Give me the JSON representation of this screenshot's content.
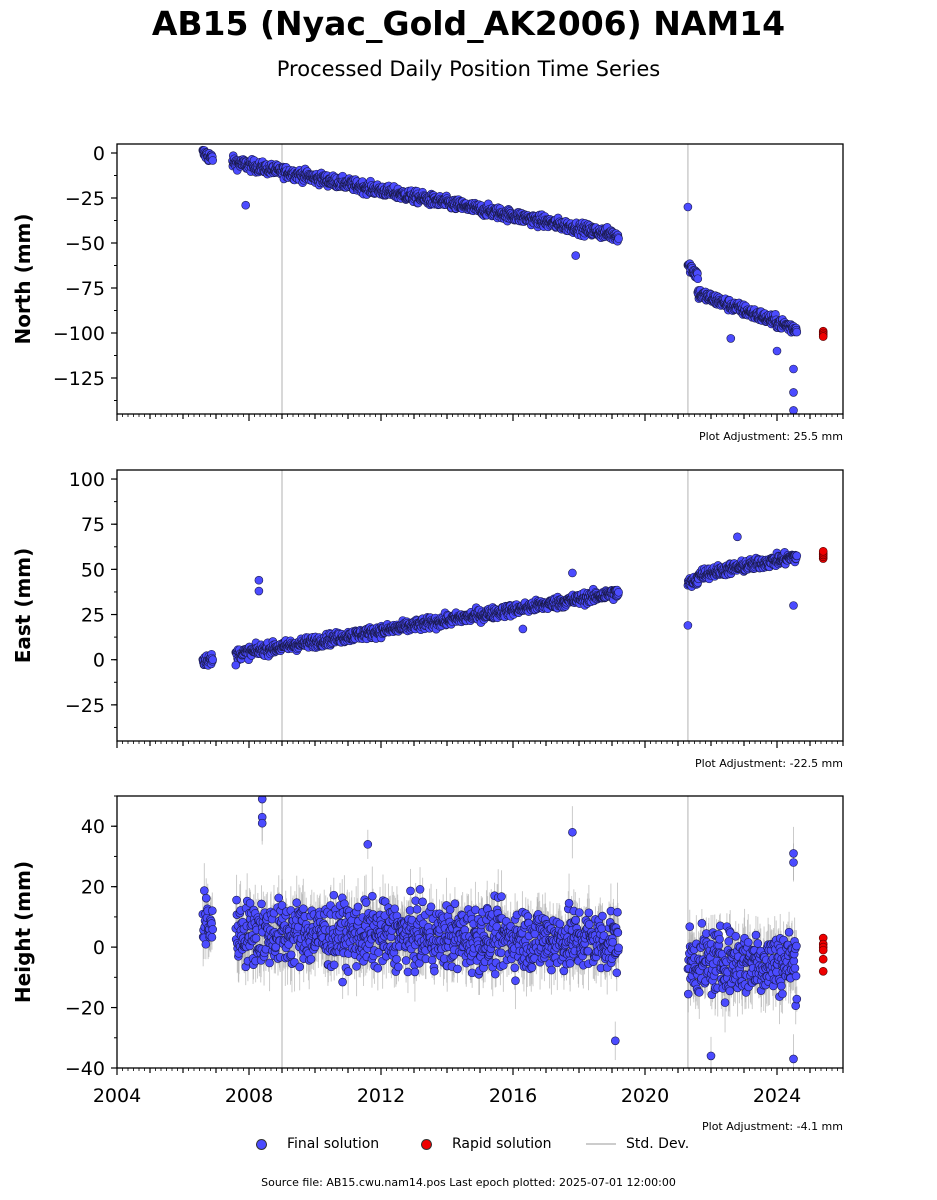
{
  "title": "AB15 (Nyac_Gold_AK2006) NAM14",
  "subtitle": "Processed Daily Position Time Series",
  "legend": {
    "final": "Final solution",
    "rapid": "Rapid solution",
    "std": "Std. Dev."
  },
  "source_text": "Source file: AB15.cwu.nam14.pos  Last epoch plotted: 2025-07-01 12:00:00",
  "colors": {
    "final": "#4b4bff",
    "rapid": "#ee0000",
    "std": "#cccccc",
    "ref_line": "#cccccc"
  },
  "chart_data": [
    {
      "type": "scatter",
      "ylabel": "North (mm)",
      "xlim": [
        2004.0,
        2026.0
      ],
      "ylim": [
        -145,
        5
      ],
      "yticks": [
        0,
        -25,
        -50,
        -75,
        -100,
        -125
      ],
      "ytick_labels": [
        "0",
        "−25",
        "−50",
        "−75",
        "−100",
        "−125"
      ],
      "x_tick_labels_visible": false,
      "vlines": [
        2009.0,
        2021.3
      ],
      "adjustment": "Plot Adjustment: 25.5 mm",
      "series": [
        {
          "kind": "final",
          "segments": [
            [
              2006.6,
              0,
              2006.9,
              -3
            ],
            [
              2007.5,
              -5,
              2019.2,
              -46
            ],
            [
              2021.3,
              -62,
              2021.6,
              -68
            ],
            [
              2021.6,
              -78,
              2024.6,
              -98
            ]
          ],
          "outliers": [
            [
              2007.9,
              -29
            ],
            [
              2021.3,
              -30
            ],
            [
              2024.5,
              -120
            ],
            [
              2024.5,
              -133
            ],
            [
              2024.5,
              -143
            ],
            [
              2017.9,
              -57
            ],
            [
              2024.0,
              -110
            ],
            [
              2022.6,
              -103
            ]
          ],
          "noise": 3
        },
        {
          "kind": "rapid",
          "points": [
            [
              2025.4,
              -99
            ],
            [
              2025.4,
              -100
            ],
            [
              2025.4,
              -101
            ],
            [
              2025.4,
              -102
            ]
          ]
        }
      ]
    },
    {
      "type": "scatter",
      "ylabel": "East (mm)",
      "xlim": [
        2004.0,
        2026.0
      ],
      "ylim": [
        -45,
        105
      ],
      "yticks": [
        100,
        75,
        50,
        25,
        0,
        -25
      ],
      "ytick_labels": [
        "100",
        "75",
        "50",
        "25",
        "0",
        "−25"
      ],
      "x_tick_labels_visible": false,
      "vlines": [
        2009.0,
        2021.3
      ],
      "adjustment": "Plot Adjustment: -22.5 mm",
      "series": [
        {
          "kind": "final",
          "segments": [
            [
              2006.6,
              0,
              2006.9,
              0
            ],
            [
              2007.6,
              3,
              2019.2,
              37
            ],
            [
              2021.3,
              42,
              2021.6,
              44
            ],
            [
              2021.6,
              47,
              2024.6,
              57
            ]
          ],
          "outliers": [
            [
              2021.3,
              19
            ],
            [
              2008.3,
              44
            ],
            [
              2008.3,
              38
            ],
            [
              2017.8,
              48
            ],
            [
              2022.8,
              68
            ],
            [
              2024.5,
              30
            ],
            [
              2007.6,
              -3
            ],
            [
              2016.3,
              17
            ]
          ],
          "noise": 3
        },
        {
          "kind": "rapid",
          "points": [
            [
              2025.4,
              56
            ],
            [
              2025.4,
              57
            ],
            [
              2025.4,
              58
            ],
            [
              2025.4,
              59
            ],
            [
              2025.4,
              60
            ]
          ]
        }
      ]
    },
    {
      "type": "scatter",
      "ylabel": "Height (mm)",
      "xlim": [
        2004.0,
        2026.0
      ],
      "ylim": [
        -40,
        50
      ],
      "yticks": [
        40,
        20,
        0,
        -20,
        -40
      ],
      "ytick_labels": [
        "40",
        "20",
        "0",
        "−20",
        "−40"
      ],
      "x_tick_labels_visible": true,
      "xticks": [
        2004,
        2008,
        2012,
        2016,
        2020,
        2024
      ],
      "xtick_labels": [
        "2004",
        "2008",
        "2012",
        "2016",
        "2020",
        "2024"
      ],
      "vlines": [
        2009.0,
        2021.3
      ],
      "adjustment": "Plot Adjustment: -4.1 mm",
      "series": [
        {
          "kind": "final",
          "segments": [
            [
              2006.6,
              8,
              2006.9,
              8
            ],
            [
              2007.6,
              5,
              2019.2,
              2
            ],
            [
              2021.3,
              -5,
              2024.6,
              -5
            ]
          ],
          "outliers": [
            [
              2008.4,
              49
            ],
            [
              2008.4,
              43
            ],
            [
              2008.4,
              41
            ],
            [
              2017.8,
              38
            ],
            [
              2019.1,
              -31
            ],
            [
              2024.5,
              31
            ],
            [
              2024.5,
              28
            ],
            [
              2024.5,
              -37
            ],
            [
              2022.0,
              -36
            ],
            [
              2011.6,
              34
            ]
          ],
          "noise": 10,
          "errorbars": true
        },
        {
          "kind": "rapid",
          "points": [
            [
              2025.4,
              3
            ],
            [
              2025.4,
              1
            ],
            [
              2025.4,
              0
            ],
            [
              2025.4,
              -1
            ],
            [
              2025.4,
              -4
            ],
            [
              2025.4,
              -8
            ]
          ]
        }
      ]
    }
  ]
}
